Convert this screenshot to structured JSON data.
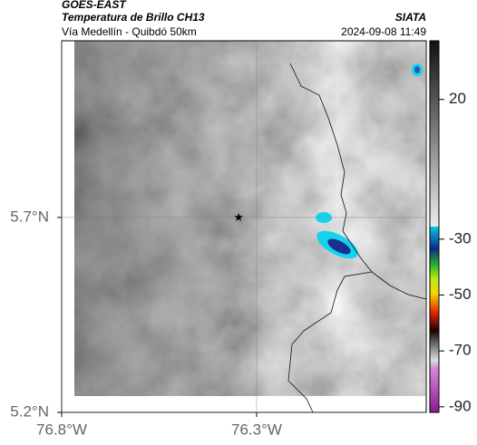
{
  "header": {
    "source": "GOES-EAST",
    "title": "Temperatura de Brillo CH13",
    "subtitle": "Vía Medellín - Quibdó 50km",
    "brand": "SIATA",
    "datetime": "2024-09-08 11:49"
  },
  "map": {
    "xlim": [
      -76.8,
      -75.865
    ],
    "ylim": [
      5.2,
      6.153
    ],
    "xticks": [
      {
        "value": -76.8,
        "label": "76.8°W"
      },
      {
        "value": -76.3,
        "label": "76.3°W"
      }
    ],
    "yticks": [
      {
        "value": 5.2,
        "label": "5.2°N"
      },
      {
        "value": 5.7,
        "label": "5.7°N"
      }
    ],
    "grid": true,
    "station": {
      "lon": -76.346,
      "lat": 5.7
    }
  },
  "colorbar": {
    "lim": [
      -92,
      41
    ],
    "ticks": [
      20,
      -30,
      -50,
      -70,
      -90
    ]
  }
}
